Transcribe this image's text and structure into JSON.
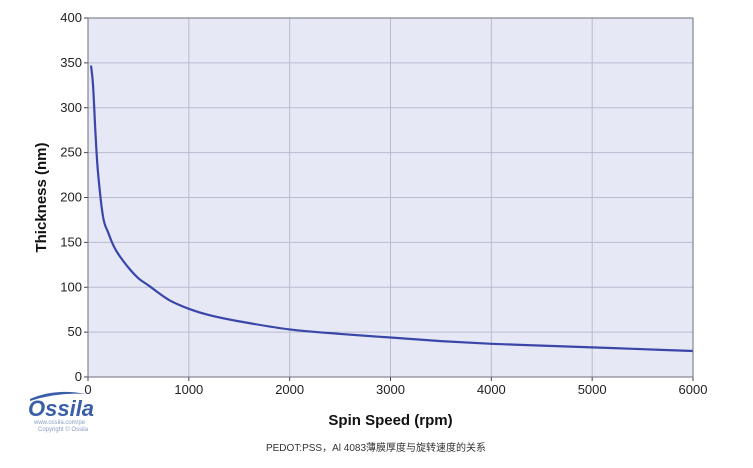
{
  "chart_data": {
    "type": "line",
    "title": "",
    "xlabel": "Spin Speed (rpm)",
    "ylabel": "Thickness (nm)",
    "xlim": [
      0,
      6000
    ],
    "ylim": [
      0,
      400
    ],
    "xticks": [
      0,
      1000,
      2000,
      3000,
      4000,
      5000,
      6000
    ],
    "yticks": [
      0,
      50,
      100,
      150,
      200,
      250,
      300,
      350,
      400
    ],
    "grid": true,
    "legend": "none",
    "background_color": "#e6e8f6",
    "grid_color": "#b9bccf",
    "series": [
      {
        "color": "#3a46a8",
        "x": [
          30,
          50,
          75,
          100,
          150,
          200,
          250,
          300,
          400,
          500,
          600,
          800,
          1000,
          1200,
          1500,
          2000,
          2500,
          3000,
          3500,
          4000,
          4500,
          5000,
          5500,
          6000
        ],
        "y": [
          347,
          325,
          270,
          227,
          178,
          161,
          147,
          137,
          122,
          110,
          102,
          86,
          76,
          69,
          62,
          53,
          48,
          44,
          40,
          37,
          35,
          33,
          31,
          29
        ]
      }
    ]
  },
  "caption": "PEDOT:PSS，Al 4083薄膜厚度与旋转速度的关系",
  "logo": {
    "name": "Ossila",
    "url": "www.ossila.com/pe",
    "copyright": "Copyright © Ossila"
  }
}
